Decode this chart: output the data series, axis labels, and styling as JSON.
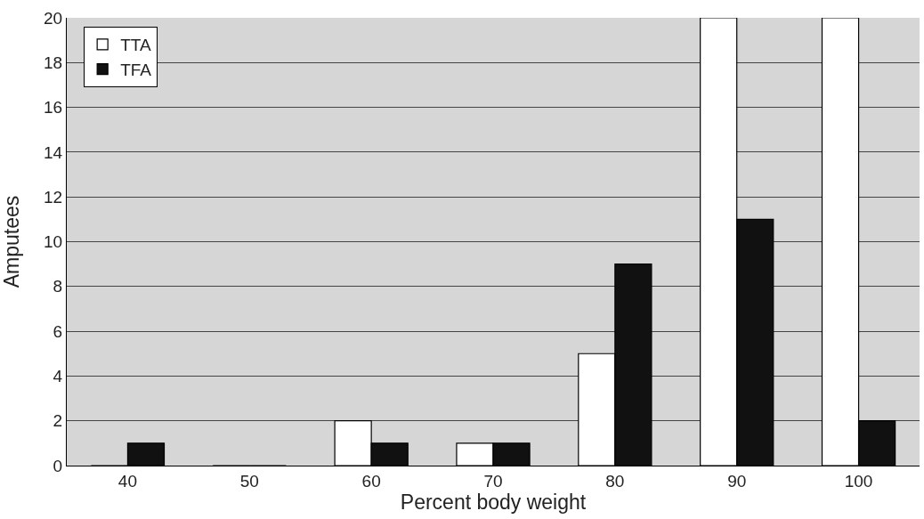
{
  "chart_data": {
    "type": "bar",
    "xlabel": "Percent body weight",
    "ylabel": "Amputees",
    "categories": [
      "40",
      "50",
      "60",
      "70",
      "80",
      "90",
      "100"
    ],
    "series": [
      {
        "name": "TTA",
        "color": "#ffffff",
        "values": [
          0,
          0,
          2,
          1,
          5,
          20,
          20
        ]
      },
      {
        "name": "TFA",
        "color": "#111111",
        "values": [
          1,
          0,
          1,
          1,
          9,
          11,
          2
        ]
      }
    ],
    "ylim": [
      0,
      20
    ],
    "yticks": [
      0,
      2,
      4,
      6,
      8,
      10,
      12,
      14,
      16,
      18,
      20
    ],
    "grid": "y",
    "legend": "top left"
  }
}
